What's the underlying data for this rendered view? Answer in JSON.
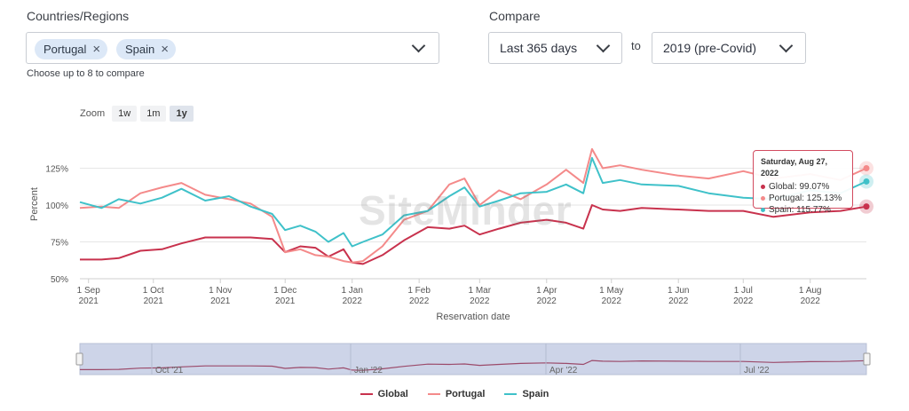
{
  "filters": {
    "countries_label": "Countries/Regions",
    "selected": [
      {
        "name": "Portugal"
      },
      {
        "name": "Spain"
      }
    ],
    "hint": "Choose up to 8 to compare",
    "compare_label": "Compare",
    "period": "Last 365 days",
    "to_label": "to",
    "baseline": "2019 (pre-Covid)"
  },
  "zoom": {
    "label": "Zoom",
    "options": [
      "1w",
      "1m",
      "1y"
    ],
    "active": "1y"
  },
  "watermark": "SiteMinder",
  "tooltip": {
    "title": "Saturday, Aug 27, 2022",
    "rows": [
      {
        "label": "Global: 99.07%",
        "color": "#c8324d"
      },
      {
        "label": "Portugal: 125.13%",
        "color": "#f48a8a"
      },
      {
        "label": "Spain: 115.77%",
        "color": "#3fc1c9"
      }
    ]
  },
  "navigator_labels": [
    "Oct '21",
    "Jan '22",
    "Apr '22",
    "Jul '22"
  ],
  "chart_data": {
    "type": "line",
    "xlabel": "Reservation date",
    "ylabel": "Percent",
    "y_ticks": [
      "50%",
      "75%",
      "100%",
      "125%"
    ],
    "ylim": [
      50,
      150
    ],
    "x_ticks": [
      {
        "top": "1 Sep",
        "bottom": "2021",
        "day": 0
      },
      {
        "top": "1 Oct",
        "bottom": "2021",
        "day": 30
      },
      {
        "top": "1 Nov",
        "bottom": "2021",
        "day": 61
      },
      {
        "top": "1 Dec",
        "bottom": "2021",
        "day": 91
      },
      {
        "top": "1 Jan",
        "bottom": "2022",
        "day": 122
      },
      {
        "top": "1 Feb",
        "bottom": "2022",
        "day": 153
      },
      {
        "top": "1 Mar",
        "bottom": "2022",
        "day": 181
      },
      {
        "top": "1 Apr",
        "bottom": "2022",
        "day": 212
      },
      {
        "top": "1 May",
        "bottom": "2022",
        "day": 242
      },
      {
        "top": "1 Jun",
        "bottom": "2022",
        "day": 273
      },
      {
        "top": "1 Jul",
        "bottom": "2022",
        "day": 303
      },
      {
        "top": "1 Aug",
        "bottom": "2022",
        "day": 334
      }
    ],
    "x_range": [
      "2021-08-28",
      "2022-08-27"
    ],
    "x": [
      "2021-08-28",
      "2021-09-07",
      "2021-09-15",
      "2021-09-25",
      "2021-10-05",
      "2021-10-14",
      "2021-10-25",
      "2021-11-05",
      "2021-11-15",
      "2021-11-25",
      "2021-12-01",
      "2021-12-08",
      "2021-12-15",
      "2021-12-21",
      "2021-12-28",
      "2022-01-01",
      "2022-01-06",
      "2022-01-15",
      "2022-01-25",
      "2022-02-05",
      "2022-02-15",
      "2022-02-22",
      "2022-03-01",
      "2022-03-10",
      "2022-03-20",
      "2022-04-01",
      "2022-04-10",
      "2022-04-18",
      "2022-04-22",
      "2022-04-27",
      "2022-05-05",
      "2022-05-15",
      "2022-06-01",
      "2022-06-15",
      "2022-07-01",
      "2022-07-15",
      "2022-08-01",
      "2022-08-15",
      "2022-08-27"
    ],
    "series": [
      {
        "name": "Global",
        "color": "#c8324d",
        "values": [
          63,
          63,
          64,
          69,
          70,
          74,
          78,
          78,
          78,
          77,
          68,
          72,
          71,
          65,
          70,
          61,
          60,
          66,
          76,
          85,
          84,
          86,
          80,
          84,
          88,
          90,
          88,
          84,
          100,
          97,
          96,
          98,
          97,
          96,
          96,
          92,
          95,
          96,
          99
        ]
      },
      {
        "name": "Portugal",
        "color": "#f48a8a",
        "values": [
          98,
          99,
          98,
          108,
          112,
          115,
          107,
          104,
          101,
          92,
          68,
          70,
          66,
          65,
          62,
          61,
          62,
          72,
          90,
          96,
          114,
          118,
          100,
          110,
          104,
          114,
          124,
          115,
          138,
          125,
          127,
          124,
          120,
          118,
          123,
          118,
          121,
          117,
          125
        ]
      },
      {
        "name": "Spain",
        "color": "#3fc1c9",
        "values": [
          102,
          98,
          104,
          101,
          105,
          111,
          103,
          106,
          99,
          94,
          83,
          86,
          82,
          75,
          81,
          72,
          75,
          80,
          93,
          96,
          106,
          112,
          99,
          103,
          108,
          109,
          114,
          108,
          132,
          115,
          117,
          114,
          113,
          108,
          105,
          104,
          110,
          108,
          116
        ]
      }
    ]
  },
  "legend": [
    "Global",
    "Portugal",
    "Spain"
  ]
}
